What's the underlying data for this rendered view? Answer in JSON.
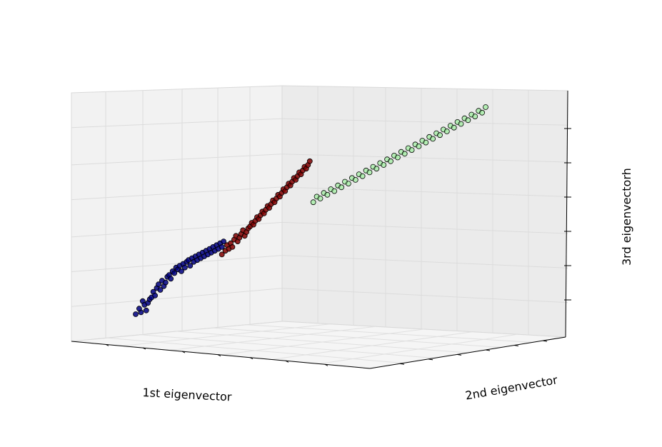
{
  "chart_data": {
    "type": "scatter",
    "title": "",
    "xlabel": "1st eigenvector",
    "ylabel": "2nd eigenvector",
    "zlabel": "3rd eigenvectorh",
    "grid": true,
    "legend": "none",
    "ticklabels_shown": false,
    "view": "3d-perspective",
    "series": [
      {
        "color": "#000080",
        "points": [
          [
            0.01,
            0.1
          ],
          [
            0.04,
            0.11
          ],
          [
            0.03,
            0.13
          ],
          [
            0.05,
            0.17
          ],
          [
            0.06,
            0.15
          ],
          [
            0.07,
            0.12
          ],
          [
            0.08,
            0.16
          ],
          [
            0.09,
            0.18
          ],
          [
            0.1,
            0.19
          ],
          [
            0.11,
            0.22
          ],
          [
            0.12,
            0.2
          ],
          [
            0.13,
            0.24
          ],
          [
            0.14,
            0.26
          ],
          [
            0.15,
            0.23
          ],
          [
            0.16,
            0.28
          ],
          [
            0.17,
            0.25
          ],
          [
            0.18,
            0.27
          ],
          [
            0.19,
            0.3
          ],
          [
            0.2,
            0.31
          ],
          [
            0.21,
            0.29
          ],
          [
            0.22,
            0.33
          ],
          [
            0.23,
            0.32
          ],
          [
            0.24,
            0.35
          ],
          [
            0.25,
            0.34
          ],
          [
            0.26,
            0.36
          ],
          [
            0.27,
            0.33
          ],
          [
            0.28,
            0.37
          ],
          [
            0.29,
            0.35
          ],
          [
            0.3,
            0.38
          ],
          [
            0.31,
            0.39
          ],
          [
            0.32,
            0.36
          ],
          [
            0.33,
            0.4
          ],
          [
            0.34,
            0.38
          ],
          [
            0.35,
            0.41
          ],
          [
            0.36,
            0.39
          ],
          [
            0.37,
            0.42
          ],
          [
            0.38,
            0.4
          ],
          [
            0.39,
            0.43
          ],
          [
            0.4,
            0.41
          ],
          [
            0.41,
            0.44
          ],
          [
            0.42,
            0.42
          ],
          [
            0.43,
            0.45
          ],
          [
            0.44,
            0.43
          ],
          [
            0.45,
            0.46
          ],
          [
            0.46,
            0.44
          ],
          [
            0.47,
            0.47
          ],
          [
            0.48,
            0.45
          ],
          [
            0.49,
            0.48
          ],
          [
            0.5,
            0.46
          ],
          [
            0.51,
            0.49
          ]
        ]
      },
      {
        "color": "#800000",
        "points": [
          [
            0.5,
            0.42
          ],
          [
            0.52,
            0.44
          ],
          [
            0.53,
            0.47
          ],
          [
            0.54,
            0.45
          ],
          [
            0.55,
            0.48
          ],
          [
            0.56,
            0.46
          ],
          [
            0.57,
            0.5
          ],
          [
            0.58,
            0.52
          ],
          [
            0.59,
            0.49
          ],
          [
            0.6,
            0.51
          ],
          [
            0.61,
            0.53
          ],
          [
            0.62,
            0.55
          ],
          [
            0.63,
            0.52
          ],
          [
            0.64,
            0.54
          ],
          [
            0.65,
            0.56
          ],
          [
            0.66,
            0.57
          ],
          [
            0.67,
            0.59
          ],
          [
            0.68,
            0.58
          ],
          [
            0.69,
            0.6
          ],
          [
            0.7,
            0.62
          ],
          [
            0.71,
            0.61
          ],
          [
            0.72,
            0.63
          ],
          [
            0.73,
            0.65
          ],
          [
            0.74,
            0.64
          ],
          [
            0.75,
            0.66
          ],
          [
            0.76,
            0.68
          ],
          [
            0.77,
            0.67
          ],
          [
            0.78,
            0.69
          ],
          [
            0.79,
            0.71
          ],
          [
            0.8,
            0.7
          ],
          [
            0.81,
            0.72
          ],
          [
            0.82,
            0.74
          ],
          [
            0.83,
            0.73
          ],
          [
            0.84,
            0.75
          ],
          [
            0.85,
            0.77
          ],
          [
            0.86,
            0.76
          ],
          [
            0.87,
            0.78
          ],
          [
            0.88,
            0.8
          ],
          [
            0.89,
            0.79
          ],
          [
            0.9,
            0.81
          ],
          [
            0.91,
            0.83
          ],
          [
            0.92,
            0.82
          ],
          [
            0.93,
            0.84
          ],
          [
            0.94,
            0.86
          ],
          [
            0.95,
            0.85
          ],
          [
            0.96,
            0.87
          ],
          [
            0.97,
            0.89
          ],
          [
            0.98,
            0.88
          ],
          [
            0.99,
            0.9
          ],
          [
            1.0,
            0.92
          ]
        ]
      },
      {
        "color": "#90ee90",
        "points": [
          [
            1.02,
            0.7
          ],
          [
            1.04,
            0.73
          ],
          [
            1.06,
            0.72
          ],
          [
            1.08,
            0.75
          ],
          [
            1.1,
            0.74
          ],
          [
            1.12,
            0.77
          ],
          [
            1.14,
            0.76
          ],
          [
            1.16,
            0.79
          ],
          [
            1.18,
            0.78
          ],
          [
            1.2,
            0.81
          ],
          [
            1.22,
            0.8
          ],
          [
            1.24,
            0.83
          ],
          [
            1.26,
            0.82
          ],
          [
            1.28,
            0.85
          ],
          [
            1.3,
            0.84
          ],
          [
            1.32,
            0.87
          ],
          [
            1.34,
            0.86
          ],
          [
            1.36,
            0.89
          ],
          [
            1.38,
            0.88
          ],
          [
            1.4,
            0.91
          ],
          [
            1.42,
            0.9
          ],
          [
            1.44,
            0.93
          ],
          [
            1.46,
            0.92
          ],
          [
            1.48,
            0.95
          ],
          [
            1.5,
            0.94
          ],
          [
            1.52,
            0.97
          ],
          [
            1.54,
            0.96
          ],
          [
            1.56,
            0.99
          ],
          [
            1.58,
            0.98
          ],
          [
            1.6,
            1.01
          ],
          [
            1.62,
            1.0
          ],
          [
            1.64,
            1.03
          ],
          [
            1.66,
            1.02
          ],
          [
            1.68,
            1.05
          ],
          [
            1.7,
            1.04
          ],
          [
            1.72,
            1.07
          ],
          [
            1.74,
            1.06
          ],
          [
            1.76,
            1.09
          ],
          [
            1.78,
            1.08
          ],
          [
            1.8,
            1.11
          ],
          [
            1.82,
            1.1
          ],
          [
            1.84,
            1.13
          ],
          [
            1.86,
            1.12
          ],
          [
            1.88,
            1.15
          ],
          [
            1.9,
            1.14
          ],
          [
            1.92,
            1.17
          ],
          [
            1.94,
            1.16
          ],
          [
            1.96,
            1.19
          ],
          [
            1.98,
            1.18
          ],
          [
            2.0,
            1.21
          ]
        ]
      }
    ]
  }
}
